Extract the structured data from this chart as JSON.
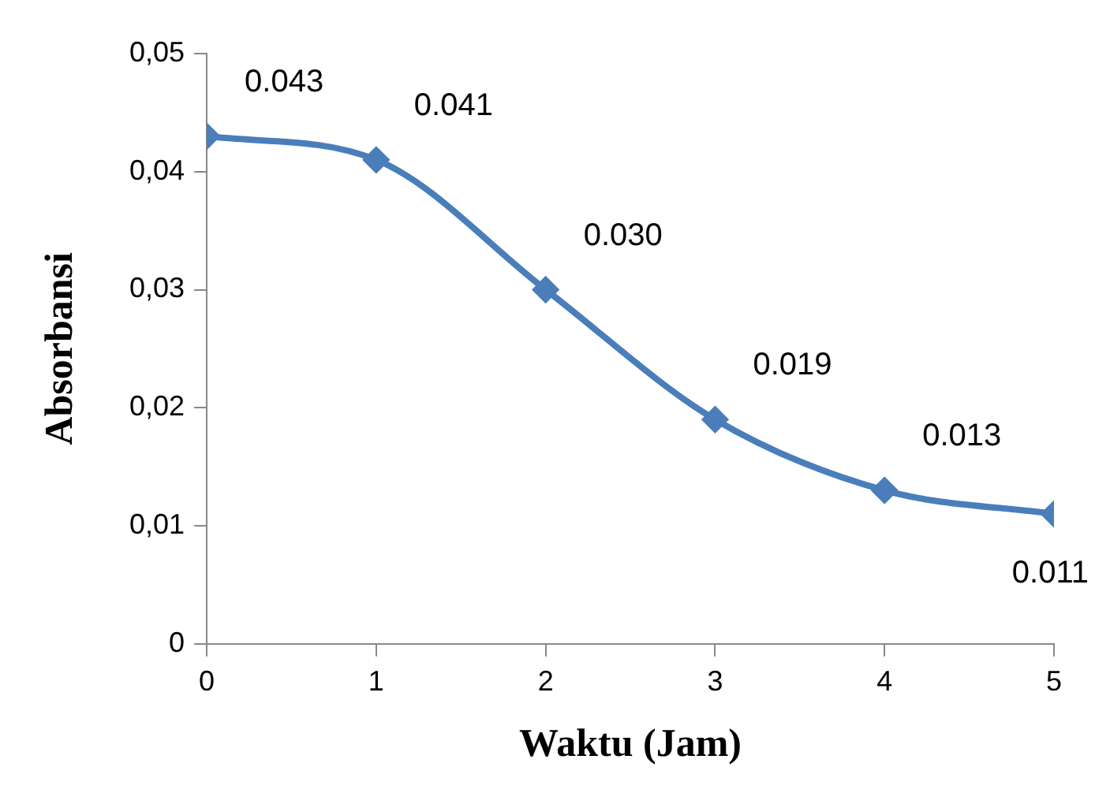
{
  "chart_data": {
    "type": "line",
    "xlabel": "Waktu (Jam)",
    "ylabel": "Absorbansi",
    "x": [
      0,
      1,
      2,
      3,
      4,
      5
    ],
    "series": [
      {
        "color": "#4a7ebb",
        "values": [
          0.043,
          0.041,
          0.03,
          0.019,
          0.013,
          0.011
        ],
        "value_labels": [
          "0.043",
          "0.041",
          "0.030",
          "0.019",
          "0.013",
          "0.011"
        ]
      }
    ],
    "xlim": [
      0,
      5
    ],
    "xticks": [
      0,
      1,
      2,
      3,
      4,
      5
    ],
    "ylim": [
      0,
      0.05
    ],
    "yticks": [
      {
        "value": 0,
        "label": "0"
      },
      {
        "value": 0.01,
        "label": "0,01"
      },
      {
        "value": 0.02,
        "label": "0,02"
      },
      {
        "value": 0.03,
        "label": "0,03"
      },
      {
        "value": 0.04,
        "label": "0,04"
      },
      {
        "value": 0.05,
        "label": "0,05"
      }
    ],
    "grid": false,
    "legend": false,
    "marker": "diamond",
    "line_style": "solid"
  }
}
